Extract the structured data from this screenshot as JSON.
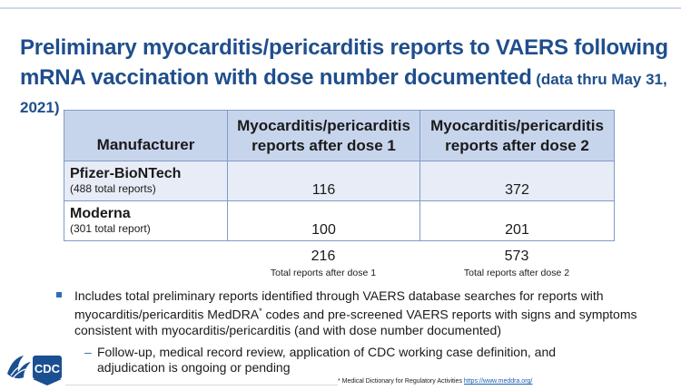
{
  "title": {
    "main": "Preliminary myocarditis/pericarditis reports to VAERS following mRNA vaccination with dose number documented",
    "sub": "(data thru May 31, 2021)"
  },
  "table": {
    "headers": [
      "Manufacturer",
      "Myocarditis/pericarditis reports after dose 1",
      "Myocarditis/pericarditis reports after dose 2"
    ],
    "rows": [
      {
        "name": "Pfizer-BioNTech",
        "note": "(488 total reports)",
        "dose1": "116",
        "dose2": "372"
      },
      {
        "name": "Moderna",
        "note": "(301 total report)",
        "dose1": "100",
        "dose2": "201"
      }
    ],
    "totals": [
      {
        "value": "216",
        "label": "Total reports after dose 1"
      },
      {
        "value": "573",
        "label": "Total reports after dose 2"
      }
    ]
  },
  "bullet": {
    "pre": "Includes total preliminary reports identified through VAERS database searches for reports with myocarditis/pericarditis MedDRA",
    "sup": "*",
    "post": " codes and pre-screened VAERS reports with signs and symptoms consistent with myocarditis/pericarditis (and with dose number documented)"
  },
  "subbullet": {
    "dash": "–",
    "text": "Follow-up, medical record review, application of CDC working case definition, and adjudication is ongoing or pending"
  },
  "footnote": {
    "text": "* Medical Dictionary for Regulatory Activities ",
    "link": "https://www.meddra.org/"
  },
  "logo": {
    "text": "CDC",
    "icon": "hhs-eagle-icon"
  },
  "colors": {
    "title": "#1f4e8c",
    "header_bg": "#c7d5ec",
    "row_alt_bg": "#e7ecf6",
    "border": "#7f9cc9",
    "bullet": "#2e6eb5",
    "logo_blue": "#1a4f91"
  }
}
